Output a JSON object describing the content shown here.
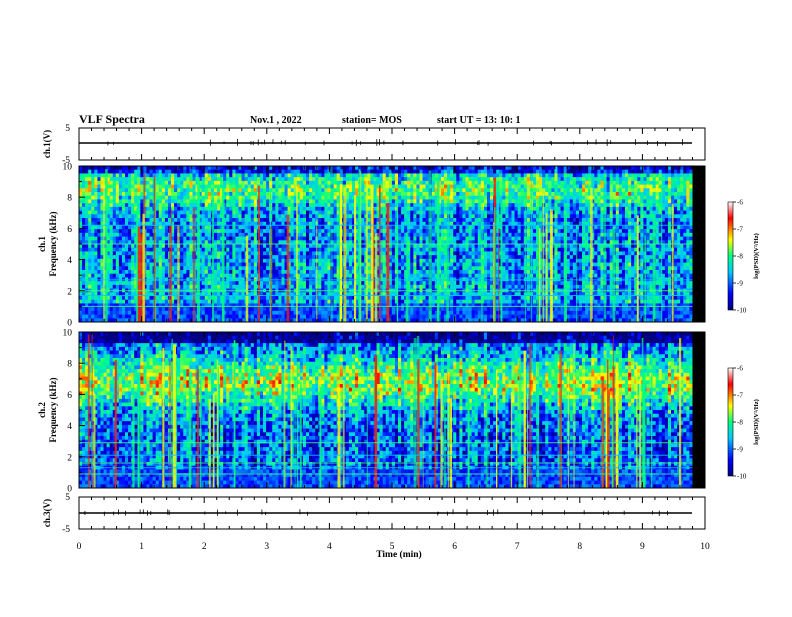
{
  "header": {
    "title": "VLF Spectra",
    "date": "Nov.1  , 2022",
    "station": "station= MOS",
    "start": "start  UT =   13: 10: 1"
  },
  "panels": {
    "ch1_wave": {
      "ylabel": "ch.1(V)",
      "ticks": [
        "5",
        "-5"
      ]
    },
    "ch1_spec": {
      "ylabel_ch": "ch.1",
      "ylabel_freq": "Frequency  (kHz)",
      "ticks": [
        "0",
        "2",
        "4",
        "6",
        "8",
        "10"
      ]
    },
    "ch2_spec": {
      "ylabel_ch": "ch.2",
      "ylabel_freq": "Frequency  (kHz)",
      "ticks": [
        "0",
        "2",
        "4",
        "6",
        "8",
        "10"
      ]
    },
    "ch3_wave": {
      "ylabel": "ch.3(V)",
      "ticks": [
        "5",
        "-5"
      ]
    }
  },
  "xaxis": {
    "label": "Time  (min)",
    "ticks": [
      "0",
      "1",
      "2",
      "3",
      "4",
      "5",
      "6",
      "7",
      "8",
      "9",
      "10"
    ]
  },
  "colorbar": {
    "label": "log(PSD)(V²/Hz)",
    "ticks": [
      "-6",
      "-7",
      "-8",
      "-9",
      "-10"
    ]
  },
  "colors": {
    "background": "#000033",
    "colormap": [
      "#000080",
      "#0000ff",
      "#00c8ff",
      "#00ff80",
      "#ffff00",
      "#ff0000",
      "#ffffff"
    ]
  },
  "chart_data": [
    {
      "type": "line",
      "name": "ch.1 waveform",
      "xlabel": "Time (min)",
      "ylabel": "ch.1(V)",
      "xlim": [
        0,
        10
      ],
      "ylim": [
        -5,
        5
      ],
      "x": [
        0,
        9.8
      ],
      "values": [
        0,
        0
      ]
    },
    {
      "type": "heatmap",
      "name": "ch.1 spectrogram",
      "xlabel": "Time (min)",
      "ylabel": "Frequency (kHz)",
      "xlim": [
        0,
        10
      ],
      "ylim": [
        0,
        10
      ],
      "data_extent_min": 9.8,
      "colorbar_label": "log(PSD)(V²/Hz)",
      "color_range": [
        -10,
        -6
      ]
    },
    {
      "type": "heatmap",
      "name": "ch.2 spectrogram",
      "xlabel": "Time (min)",
      "ylabel": "Frequency (kHz)",
      "xlim": [
        0,
        10
      ],
      "ylim": [
        0,
        10
      ],
      "data_extent_min": 9.8,
      "colorbar_label": "log(PSD)(V²/Hz)",
      "color_range": [
        -10,
        -6
      ]
    },
    {
      "type": "line",
      "name": "ch.3 waveform",
      "xlabel": "Time (min)",
      "ylabel": "ch.3(V)",
      "xlim": [
        0,
        10
      ],
      "ylim": [
        -5,
        5
      ],
      "x": [
        0,
        9.8
      ],
      "values": [
        0,
        0
      ]
    }
  ]
}
